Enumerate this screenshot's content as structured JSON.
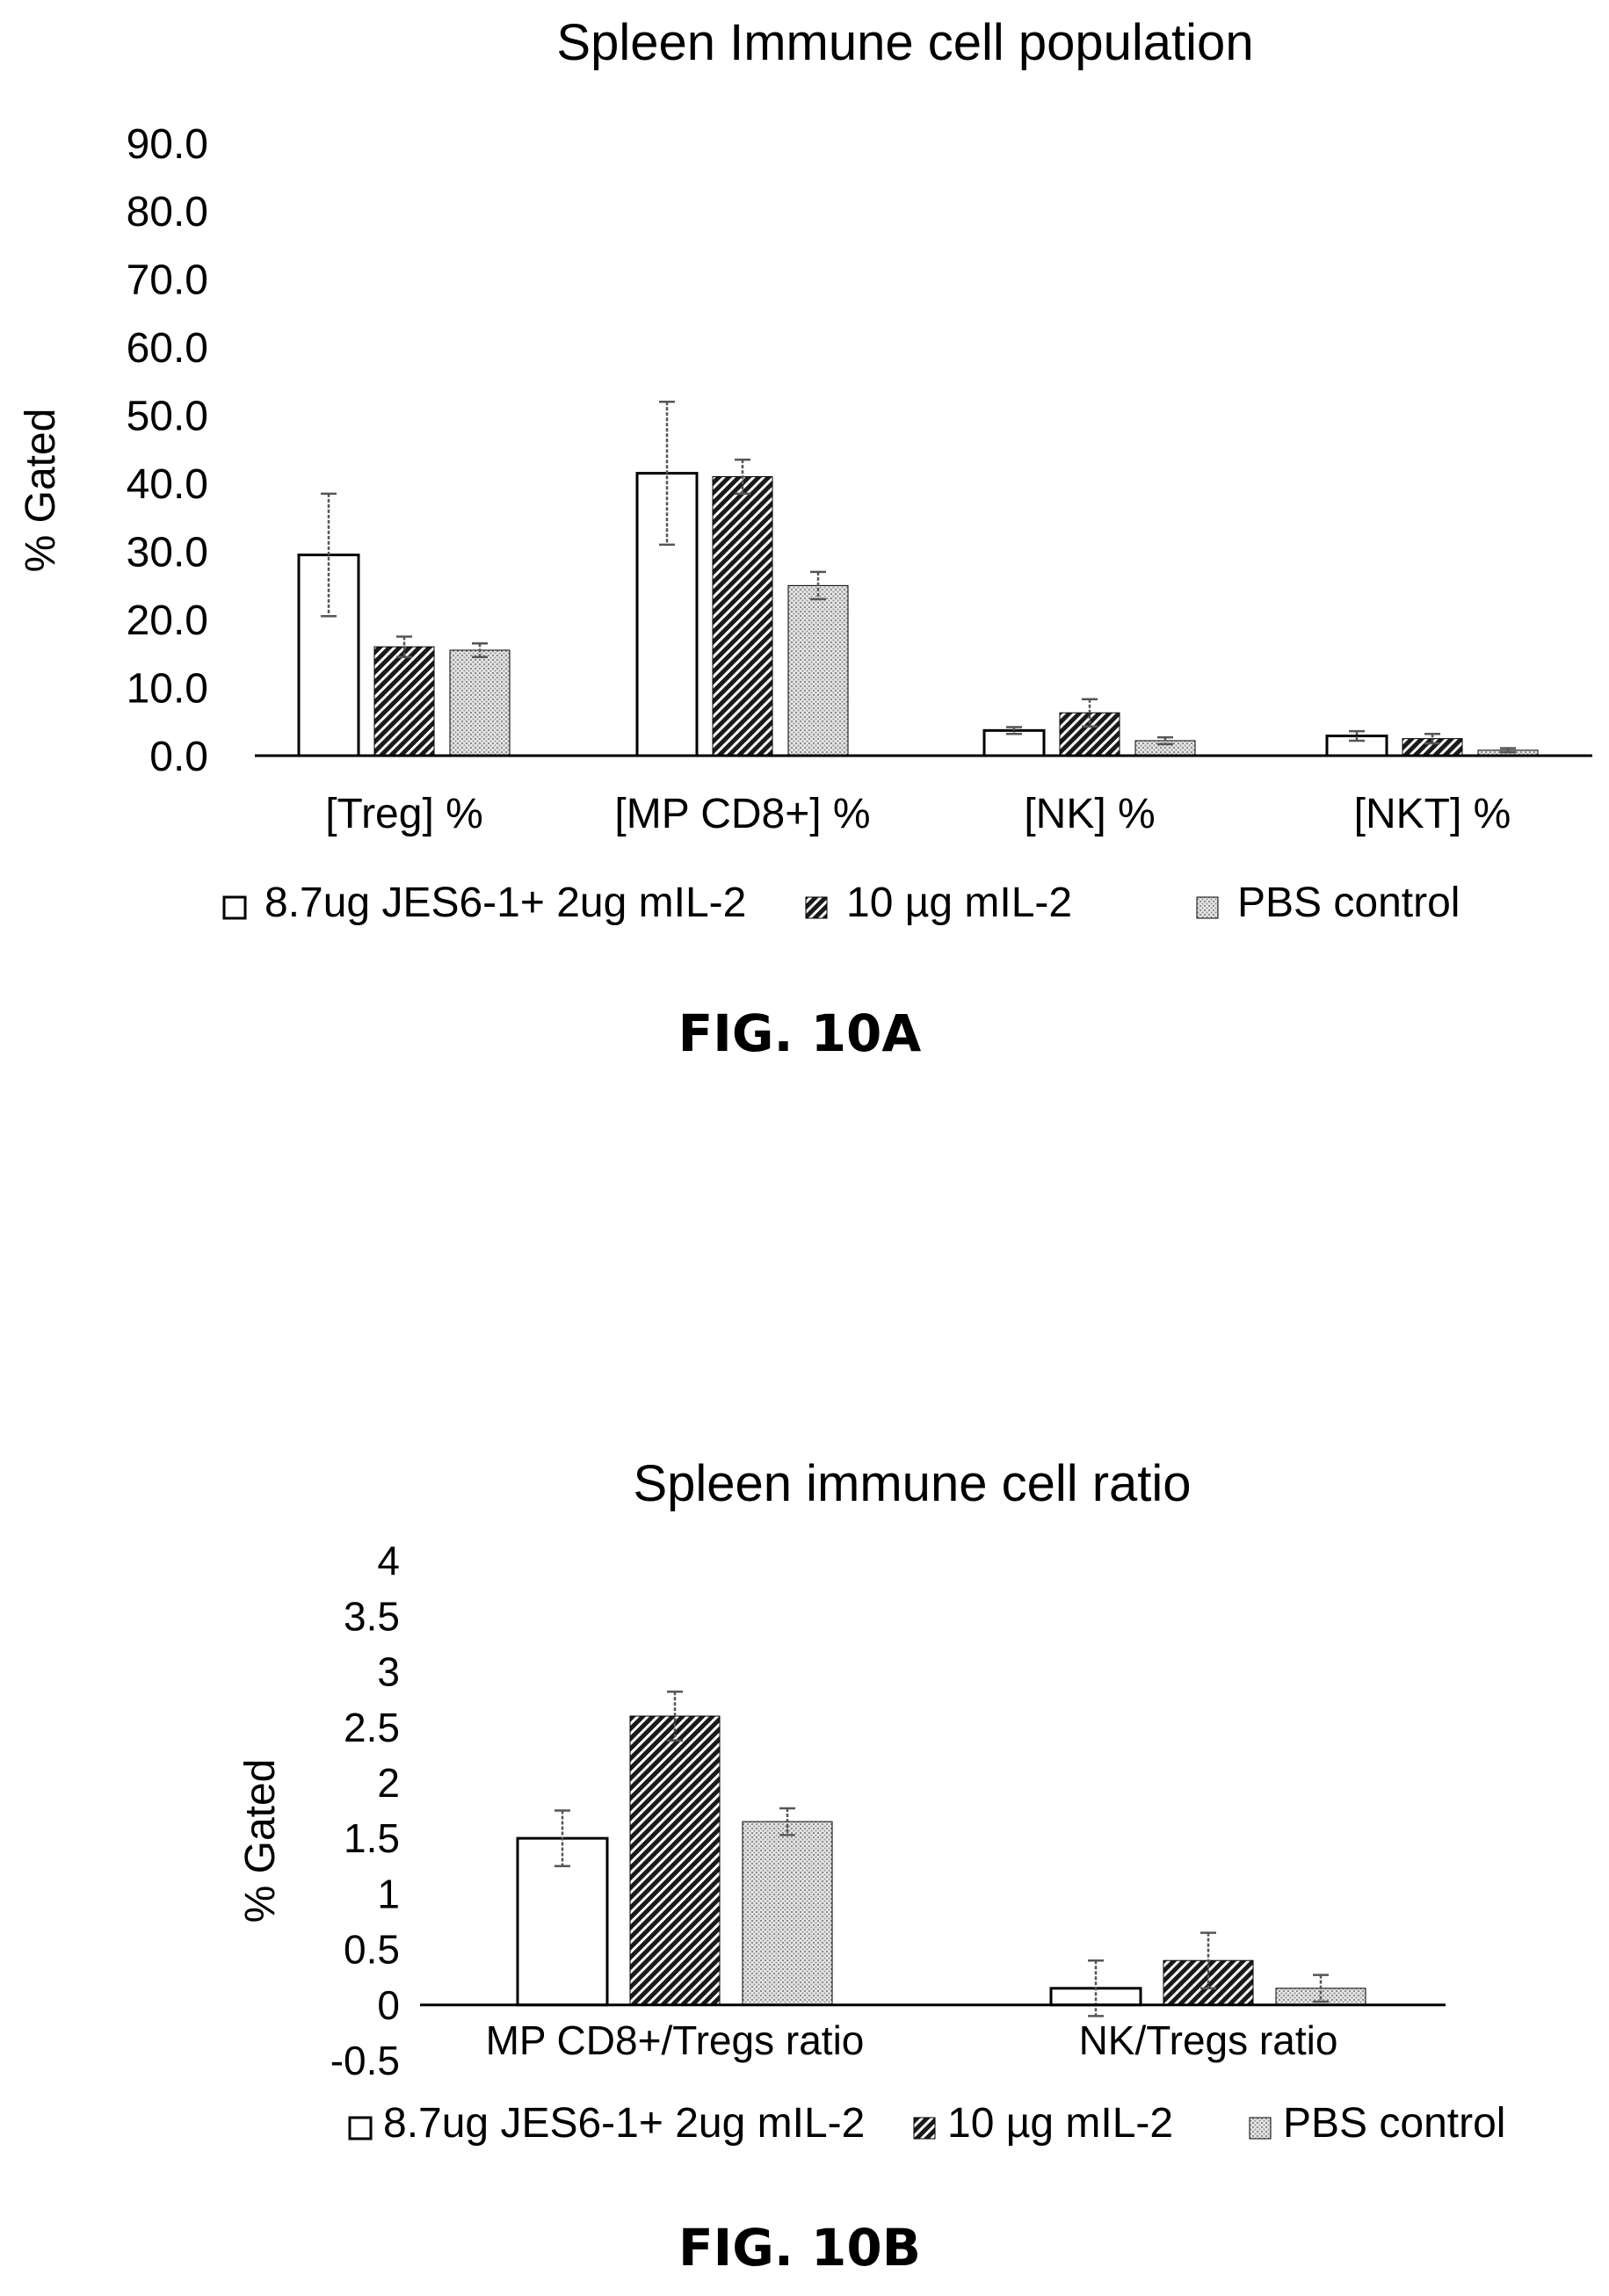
{
  "figures": [
    {
      "label": "FIG. 10A"
    },
    {
      "label": "FIG. 10B"
    }
  ],
  "chart_data": [
    {
      "type": "bar",
      "title": "Spleen Immune cell population",
      "ylabel": "% Gated",
      "xlabel": "",
      "ylim": [
        0,
        90
      ],
      "yticks": [
        "0.0",
        "10.0",
        "20.0",
        "30.0",
        "40.0",
        "50.0",
        "60.0",
        "70.0",
        "80.0",
        "90.0"
      ],
      "ytick_values": [
        0,
        10,
        20,
        30,
        40,
        50,
        60,
        70,
        80,
        90
      ],
      "categories": [
        "[Treg] %",
        "[MP CD8+] %",
        "[NK] %",
        "[NKT] %"
      ],
      "legend_position": "bottom",
      "grid": false,
      "series": [
        {
          "name": "8.7ug JES6-1+ 2ug mIL-2",
          "pattern": "open",
          "values": [
            29.5,
            41.5,
            3.7,
            2.9
          ],
          "errors": [
            9.0,
            10.5,
            0.5,
            0.7
          ]
        },
        {
          "name": "10 µg mIL-2",
          "pattern": "hatched",
          "values": [
            16.0,
            41.0,
            6.3,
            2.5
          ],
          "errors": [
            1.5,
            2.5,
            2.0,
            0.7
          ]
        },
        {
          "name": "PBS control",
          "pattern": "dotted",
          "values": [
            15.5,
            25.0,
            2.2,
            0.8
          ],
          "errors": [
            1.0,
            2.0,
            0.5,
            0.3
          ]
        }
      ]
    },
    {
      "type": "bar",
      "title": "Spleen immune cell ratio",
      "ylabel": "% Gated",
      "xlabel": "",
      "ylim": [
        -0.5,
        4
      ],
      "yticks": [
        "-0.5",
        "0",
        "0.5",
        "1",
        "1.5",
        "2",
        "2.5",
        "3",
        "3.5",
        "4"
      ],
      "ytick_values": [
        -0.5,
        0,
        0.5,
        1,
        1.5,
        2,
        2.5,
        3,
        3.5,
        4
      ],
      "categories": [
        "MP CD8+/Tregs ratio",
        "NK/Tregs ratio"
      ],
      "legend_position": "bottom",
      "grid": false,
      "series": [
        {
          "name": "8.7ug JES6-1+ 2ug mIL-2",
          "pattern": "open",
          "values": [
            1.5,
            0.15
          ],
          "errors": [
            0.25,
            0.25
          ]
        },
        {
          "name": "10 µg mIL-2",
          "pattern": "hatched",
          "values": [
            2.6,
            0.4
          ],
          "errors": [
            0.22,
            0.25
          ]
        },
        {
          "name": "PBS control",
          "pattern": "dotted",
          "values": [
            1.65,
            0.15
          ],
          "errors": [
            0.12,
            0.12
          ]
        }
      ]
    }
  ]
}
